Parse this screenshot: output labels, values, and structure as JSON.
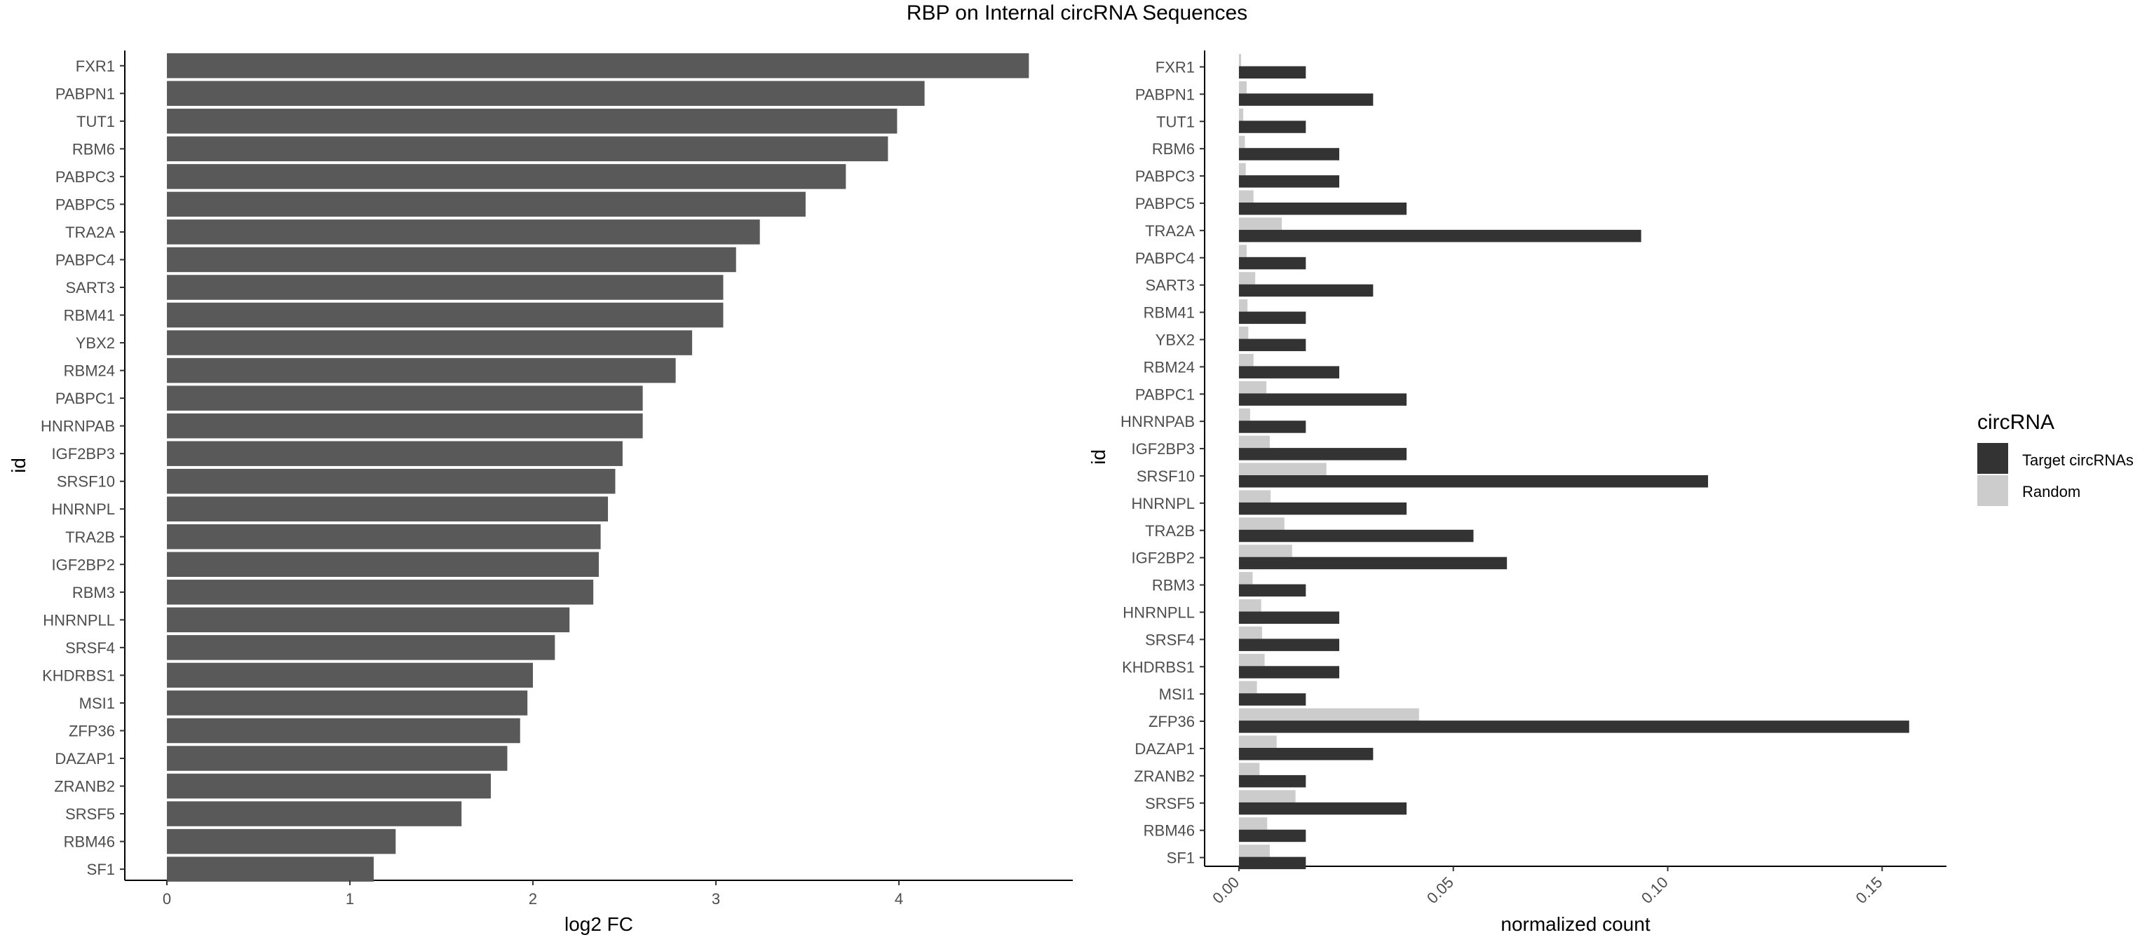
{
  "title": "RBP on Internal circRNA Sequences",
  "colors": {
    "fc_bar": "#595959",
    "target": "#333333",
    "random": "#cccccc",
    "axis": "#000000",
    "tick_text": "#4d4d4d"
  },
  "legend": {
    "title": "circRNA",
    "items": [
      "Target circRNAs",
      "Random"
    ]
  },
  "chart_data": [
    {
      "type": "bar",
      "orientation": "horizontal",
      "xlabel": "log2 FC",
      "ylabel": "id",
      "xlim": [
        -0.23,
        4.95
      ],
      "xticks": [
        0,
        1,
        2,
        3,
        4
      ],
      "categories": [
        "FXR1",
        "PABPN1",
        "TUT1",
        "RBM6",
        "PABPC3",
        "PABPC5",
        "TRA2A",
        "PABPC4",
        "SART3",
        "RBM41",
        "YBX2",
        "RBM24",
        "PABPC1",
        "HNRNPAB",
        "IGF2BP3",
        "SRSF10",
        "HNRNPL",
        "TRA2B",
        "IGF2BP2",
        "RBM3",
        "HNRNPLL",
        "SRSF4",
        "KHDRBS1",
        "MSI1",
        "ZFP36",
        "DAZAP1",
        "ZRANB2",
        "SRSF5",
        "RBM46",
        "SF1"
      ],
      "values": [
        4.71,
        4.14,
        3.99,
        3.94,
        3.71,
        3.49,
        3.24,
        3.11,
        3.04,
        3.04,
        2.87,
        2.78,
        2.6,
        2.6,
        2.49,
        2.45,
        2.41,
        2.37,
        2.36,
        2.33,
        2.2,
        2.12,
        2.0,
        1.97,
        1.93,
        1.86,
        1.77,
        1.61,
        1.25,
        1.13
      ]
    },
    {
      "type": "bar",
      "orientation": "horizontal",
      "grouped": true,
      "xlabel": "normalized count",
      "ylabel": "id",
      "xlim": [
        -0.008,
        0.165
      ],
      "xticks": [
        "0.00",
        "0.05",
        "0.10",
        "0.15"
      ],
      "legend_position": "right",
      "categories": [
        "FXR1",
        "PABPN1",
        "TUT1",
        "RBM6",
        "PABPC3",
        "PABPC5",
        "TRA2A",
        "PABPC4",
        "SART3",
        "RBM41",
        "YBX2",
        "RBM24",
        "PABPC1",
        "HNRNPAB",
        "IGF2BP3",
        "SRSF10",
        "HNRNPL",
        "TRA2B",
        "IGF2BP2",
        "RBM3",
        "HNRNPLL",
        "SRSF4",
        "KHDRBS1",
        "MSI1",
        "ZFP36",
        "DAZAP1",
        "ZRANB2",
        "SRSF5",
        "RBM46",
        "SF1"
      ],
      "series": [
        {
          "name": "Target circRNAs",
          "values": [
            0.0156,
            0.0313,
            0.0156,
            0.0234,
            0.0234,
            0.0391,
            0.0938,
            0.0156,
            0.0313,
            0.0156,
            0.0156,
            0.0234,
            0.0391,
            0.0156,
            0.0391,
            0.1094,
            0.0391,
            0.0547,
            0.0625,
            0.0156,
            0.0234,
            0.0234,
            0.0234,
            0.0156,
            0.1563,
            0.0313,
            0.0156,
            0.0391,
            0.0156,
            0.0156
          ]
        },
        {
          "name": "Random",
          "values": [
            0.0005,
            0.0018,
            0.001,
            0.0014,
            0.0016,
            0.0034,
            0.01,
            0.0018,
            0.0038,
            0.002,
            0.0022,
            0.0034,
            0.0064,
            0.0026,
            0.0072,
            0.0204,
            0.0074,
            0.0106,
            0.0124,
            0.0032,
            0.0052,
            0.0054,
            0.006,
            0.0042,
            0.042,
            0.0088,
            0.0048,
            0.0132,
            0.0066,
            0.0072
          ]
        }
      ]
    }
  ]
}
